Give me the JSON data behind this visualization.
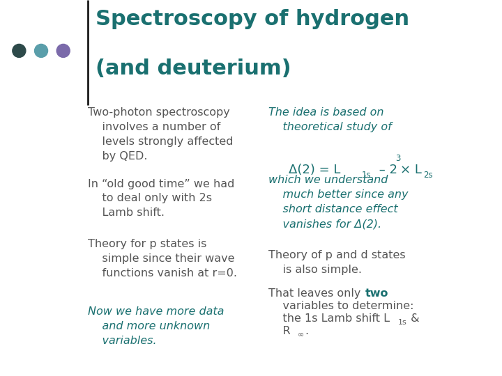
{
  "background_color": "#ffffff",
  "title_line1": "Spectroscopy of hydrogen",
  "title_line2": "(and deuterium)",
  "title_color": "#1a6b6b",
  "dot_colors": [
    "#2d4a4a",
    "#5a9eaa",
    "#7b6aaa"
  ],
  "line_color": "#1a1a1a",
  "left_col_color": "#555555",
  "teal_color": "#1a7070",
  "left_blocks": [
    {
      "text": "Two-photon spectroscopy\n    involves a number of\n    levels strongly affected\n    by QED.",
      "italic": false,
      "teal": false
    },
    {
      "text": "In “old good time” we had\n    to deal only with 2s\n    Lamb shift.",
      "italic": false,
      "teal": false
    },
    {
      "text": "Theory for p states is\n    simple since their wave\n    functions vanish at r=0.",
      "italic": false,
      "teal": false
    },
    {
      "text": "Now we have more data\n    and more unknown\n    variables.",
      "italic": true,
      "teal": true
    }
  ]
}
